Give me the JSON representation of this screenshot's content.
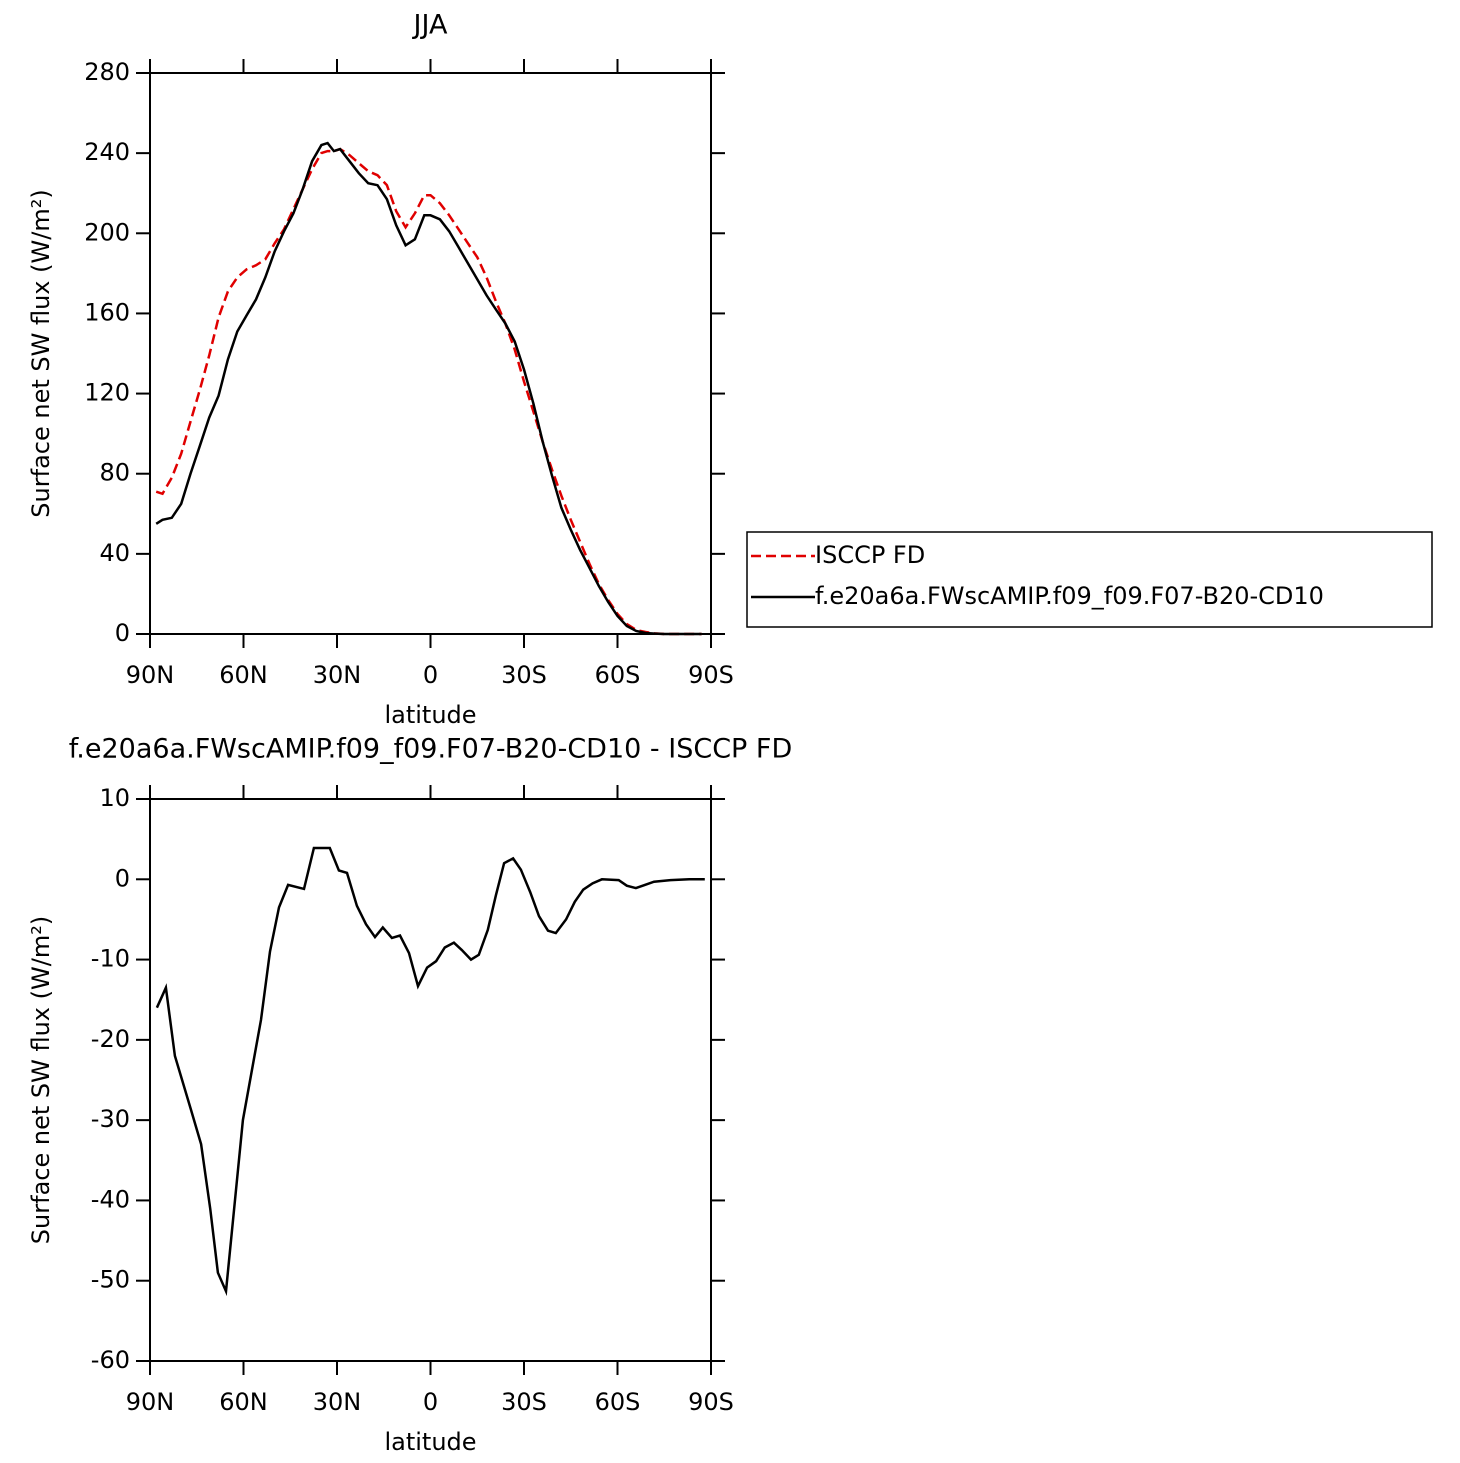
{
  "chart_data": [
    {
      "type": "line",
      "title": "JJA",
      "xlabel": "latitude",
      "ylabel": "Surface net SW flux (W/m²)",
      "xlim": [
        90,
        -90
      ],
      "xticks": [
        {
          "value": 90,
          "label": "90N"
        },
        {
          "value": 60,
          "label": "60N"
        },
        {
          "value": 30,
          "label": "30N"
        },
        0,
        {
          "value": -30,
          "label": "30S"
        },
        {
          "value": -60,
          "label": "60S"
        },
        {
          "value": -90,
          "label": "90S"
        }
      ],
      "ylim": [
        0,
        280
      ],
      "yticks": [
        0,
        40,
        80,
        120,
        160,
        200,
        240,
        280
      ],
      "legend": "right",
      "x": [
        88,
        86,
        83,
        80,
        77,
        74,
        71,
        68,
        65,
        62,
        59,
        56,
        53,
        50,
        47,
        44,
        41,
        38,
        35,
        33,
        31,
        29,
        26,
        23,
        20,
        17,
        14,
        11,
        8,
        5,
        2,
        0,
        -3,
        -6,
        -9,
        -12,
        -15,
        -18,
        -21,
        -24,
        -27,
        -30,
        -33,
        -36,
        -39,
        -42,
        -45,
        -48,
        -51,
        -54,
        -57,
        -60,
        -63,
        -66,
        -69,
        -72,
        -75,
        -78,
        -81,
        -84,
        -87
      ],
      "series": [
        {
          "name": "ISCCP FD",
          "color": "#e00000",
          "dash": true,
          "values": [
            71,
            70,
            78,
            90,
            106,
            122,
            139,
            158,
            171,
            178,
            182,
            184,
            187,
            195,
            202,
            212,
            222,
            232,
            240,
            241,
            241,
            242,
            239,
            235,
            231,
            229,
            224,
            211,
            203,
            210,
            219,
            219,
            215,
            209,
            202,
            195,
            188,
            178,
            166,
            155,
            142,
            126,
            111,
            96,
            82,
            69,
            57,
            46,
            35,
            25,
            17,
            10,
            5,
            2,
            1,
            0.3,
            0,
            0,
            0,
            0,
            0
          ]
        },
        {
          "name": "f.e20a6a.FWscAMIP.f09_f09.F07-B20-CD10",
          "color": "#000000",
          "dash": false,
          "values": [
            55,
            57,
            58,
            65,
            80,
            94,
            108,
            119,
            137,
            151,
            159,
            167,
            178,
            191,
            201,
            210,
            222,
            236,
            244,
            245,
            241,
            242,
            236,
            230,
            225,
            224,
            217,
            204,
            194,
            197,
            209,
            209,
            207,
            201,
            193,
            185,
            177,
            169,
            162,
            155,
            146,
            132,
            115,
            96,
            79,
            63,
            52,
            42,
            33,
            24,
            16,
            9,
            4,
            1.5,
            0.5,
            0.2,
            0,
            0,
            0,
            0,
            0
          ]
        }
      ]
    },
    {
      "type": "line",
      "title": "f.e20a6a.FWscAMIP.f09_f09.F07-B20-CD10 - ISCCP FD",
      "xlabel": "latitude",
      "ylabel": "Surface net SW flux (W/m²)",
      "xlim": [
        90,
        -90
      ],
      "xticks": [
        {
          "value": 90,
          "label": "90N"
        },
        {
          "value": 60,
          "label": "60N"
        },
        {
          "value": 30,
          "label": "30N"
        },
        0,
        {
          "value": -30,
          "label": "30S"
        },
        {
          "value": -60,
          "label": "60S"
        },
        {
          "value": -90,
          "label": "90S"
        }
      ],
      "ylim": [
        -60,
        10
      ],
      "yticks": [
        -60,
        -50,
        -40,
        -30,
        -20,
        -10,
        0,
        10
      ],
      "x": [
        87.8,
        84.9,
        82,
        77,
        73.6,
        70.7,
        68.2,
        65.6,
        60.2,
        54.4,
        51.5,
        48.6,
        45.7,
        40.6,
        37.4,
        32.3,
        29.4,
        26.8,
        23.6,
        20.7,
        17.8,
        15.3,
        12.4,
        9.8,
        6.9,
        4,
        1.1,
        -1.8,
        -4.6,
        -7.5,
        -10,
        -13,
        -15.5,
        -18.4,
        -21,
        -23.6,
        -26.5,
        -29,
        -32,
        -34.8,
        -37.7,
        -40.2,
        -43.5,
        -46.3,
        -49,
        -52,
        -55,
        -60.4,
        -63,
        -65.9,
        -68.8,
        -71.7,
        -77,
        -83,
        -88
      ],
      "series": [
        {
          "color": "#000000",
          "dash": false,
          "values": [
            -16,
            -13.5,
            -22,
            -28.5,
            -33,
            -41,
            -49,
            -51.3,
            -30,
            -17.5,
            -9,
            -3.5,
            -0.7,
            -1.2,
            3.9,
            3.9,
            1.1,
            0.8,
            -3.3,
            -5.6,
            -7.2,
            -6,
            -7.3,
            -7,
            -9.2,
            -13.3,
            -11,
            -10.2,
            -8.5,
            -7.9,
            -8.8,
            -10,
            -9.4,
            -6.3,
            -2,
            2,
            2.6,
            1.2,
            -1.6,
            -4.6,
            -6.4,
            -6.7,
            -5,
            -2.8,
            -1.3,
            -0.5,
            0,
            -0.1,
            -0.8,
            -1.1,
            -0.7,
            -0.3,
            -0.1,
            0,
            0
          ]
        }
      ]
    }
  ]
}
